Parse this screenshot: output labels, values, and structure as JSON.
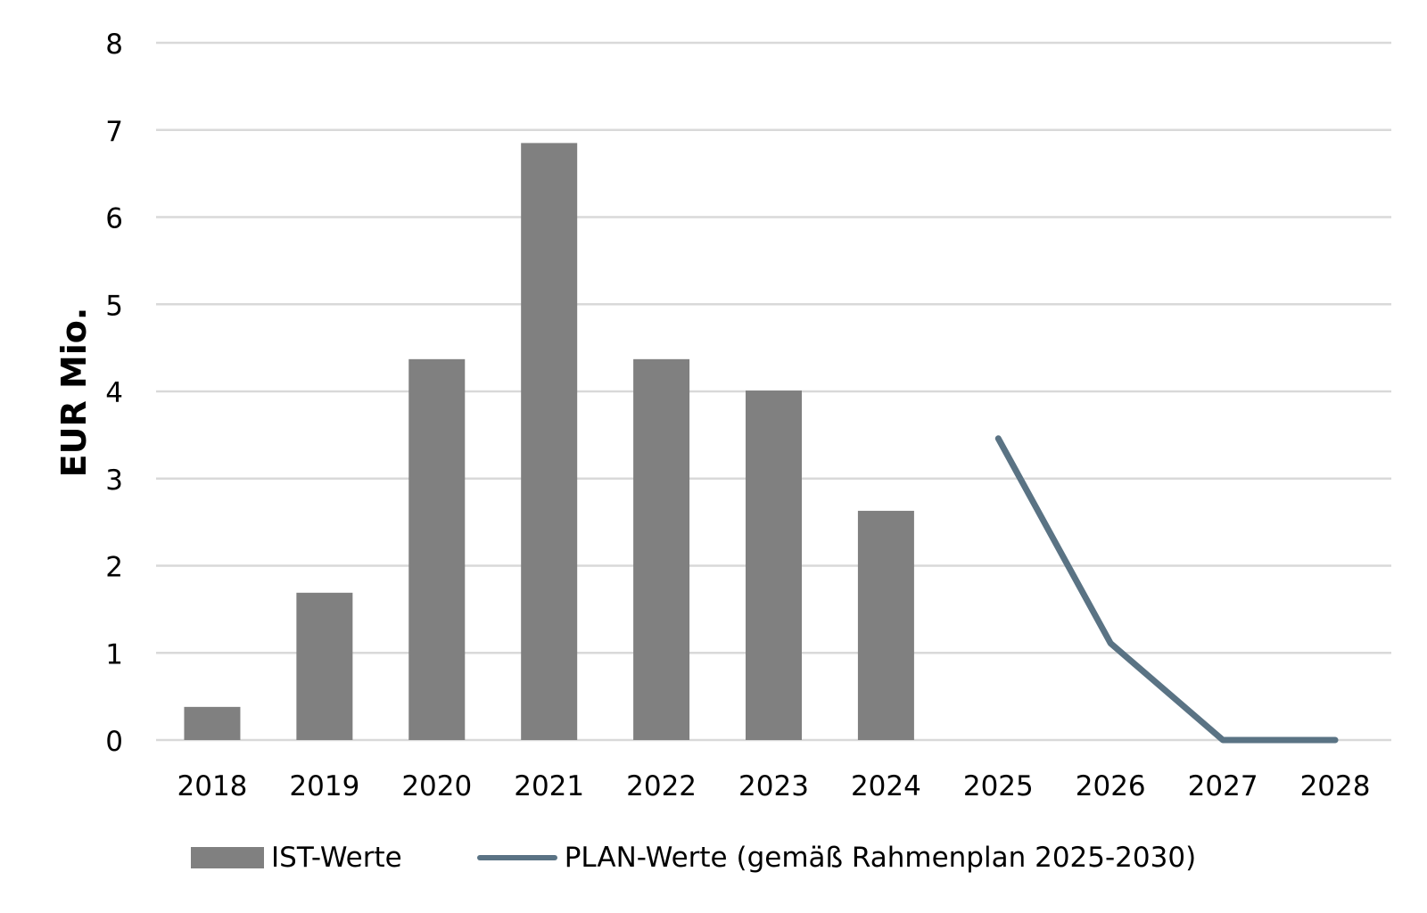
{
  "chart_data": {
    "type": "bar",
    "ylabel": "EUR Mio.",
    "xlabel": "",
    "ylim": [
      0,
      8
    ],
    "yticks": [
      "0",
      "1",
      "2",
      "3",
      "4",
      "5",
      "6",
      "7",
      "8"
    ],
    "categories": [
      "2018",
      "2019",
      "2020",
      "2021",
      "2022",
      "2023",
      "2024",
      "2025",
      "2026",
      "2027",
      "2028"
    ],
    "grid": true,
    "legend_position": "bottom",
    "series": [
      {
        "name": "IST-Werte",
        "type": "bar",
        "color": "#808080",
        "values": [
          0.38,
          1.69,
          4.37,
          6.85,
          4.37,
          4.01,
          2.63,
          null,
          null,
          null,
          null
        ]
      },
      {
        "name": "PLAN-Werte (gemäß Rahmenplan 2025-2030)",
        "type": "line",
        "color": "#5a7384",
        "values": [
          null,
          null,
          null,
          null,
          null,
          null,
          null,
          3.46,
          1.11,
          0.0,
          0.0
        ]
      }
    ]
  }
}
